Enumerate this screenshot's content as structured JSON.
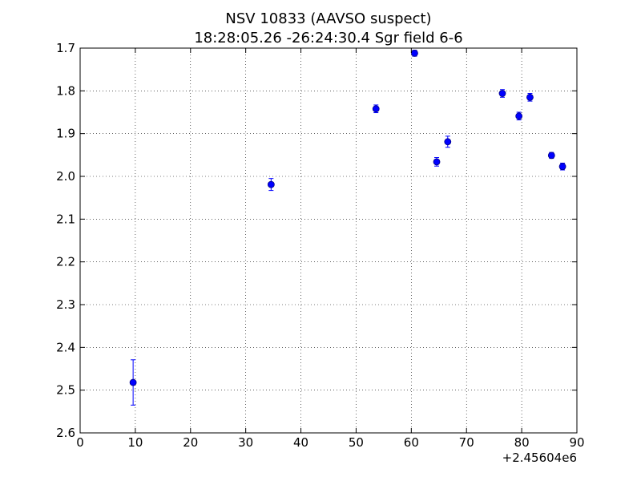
{
  "chart_data": {
    "type": "scatter",
    "title": "NSV 10833  (AAVSO suspect)",
    "subtitle": "18:28:05.26 -26:24:30.4 Sgr field 6-6",
    "xlabel": "",
    "ylabel": "",
    "x_offset_label": "+2.45604e6",
    "xlim": [
      0,
      90
    ],
    "ylim": [
      1.7,
      2.6
    ],
    "y_inverted": true,
    "grid": true,
    "grid_style": "dotted",
    "x_ticks": [
      0,
      10,
      20,
      30,
      40,
      50,
      60,
      70,
      80,
      90
    ],
    "x_tick_labels": [
      "0",
      "10",
      "20",
      "30",
      "40",
      "50",
      "60",
      "70",
      "80",
      "90"
    ],
    "y_ticks": [
      1.7,
      1.8,
      1.9,
      2.0,
      2.1,
      2.2,
      2.3,
      2.4,
      2.5,
      2.6
    ],
    "y_tick_labels": [
      "1.7",
      "1.8",
      "1.9",
      "2.0",
      "2.1",
      "2.2",
      "2.3",
      "2.4",
      "2.5",
      "2.6"
    ],
    "marker_color": "#0000ff",
    "marker_edge_color": "#000080",
    "errorbar_color": "#0000ff",
    "points": [
      {
        "x": 9.6,
        "y": 2.482,
        "err": 0.053
      },
      {
        "x": 34.6,
        "y": 2.019,
        "err": 0.014
      },
      {
        "x": 53.6,
        "y": 1.842,
        "err": 0.009
      },
      {
        "x": 60.6,
        "y": 1.712,
        "err": 0.007
      },
      {
        "x": 64.6,
        "y": 1.966,
        "err": 0.01
      },
      {
        "x": 66.6,
        "y": 1.919,
        "err": 0.013
      },
      {
        "x": 76.5,
        "y": 1.806,
        "err": 0.009
      },
      {
        "x": 79.5,
        "y": 1.859,
        "err": 0.009
      },
      {
        "x": 81.5,
        "y": 1.815,
        "err": 0.009
      },
      {
        "x": 85.4,
        "y": 1.951,
        "err": 0.007
      },
      {
        "x": 87.4,
        "y": 1.977,
        "err": 0.008
      }
    ]
  }
}
